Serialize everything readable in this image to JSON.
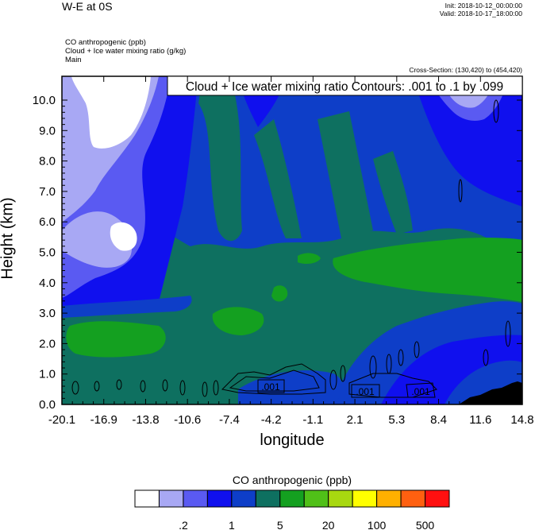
{
  "header": {
    "title": "W-E at 0S",
    "init": "Init: 2018-10-12_00:00:00",
    "valid": "Valid: 2018-10-17_18:00:00",
    "field1": "CO anthropogenic   (ppb)",
    "field2": "Cloud + Ice water mixing ratio   (g/kg)",
    "field3": "Main",
    "cross_section": "Cross-Section: (130,420) to (454,420)"
  },
  "chart_data": {
    "type": "heatmap",
    "title": "Cloud + Ice water mixing ratio Contours: .001 to .1 by .099",
    "xlabel": "longitude",
    "ylabel": "Height (km)",
    "x_ticks": [
      "-20.1",
      "-16.9",
      "-13.8",
      "-10.6",
      "-7.4",
      "-4.2",
      "-1.1",
      "2.1",
      "5.3",
      "8.4",
      "11.6",
      "14.8"
    ],
    "y_ticks": [
      "0.0",
      "1.0",
      "2.0",
      "3.0",
      "4.0",
      "5.0",
      "6.0",
      "7.0",
      "8.0",
      "9.0",
      "10.0"
    ],
    "xlim": [
      -20.1,
      14.8
    ],
    "ylim": [
      0.0,
      10.0
    ],
    "contour_labels": [
      ".001",
      ".001",
      ".001"
    ],
    "colorbar": {
      "title": "CO anthropogenic  (ppb)",
      "tick_labels": [
        ".2",
        "1",
        "5",
        "20",
        "100",
        "500"
      ],
      "colors": [
        "#ffffff",
        "#a8a8f4",
        "#5a5af2",
        "#1010ee",
        "#0e3ec8",
        "#0e7060",
        "#14a020",
        "#50c018",
        "#a8d810",
        "#ffff00",
        "#ffb000",
        "#ff6010",
        "#ff1010"
      ]
    }
  }
}
